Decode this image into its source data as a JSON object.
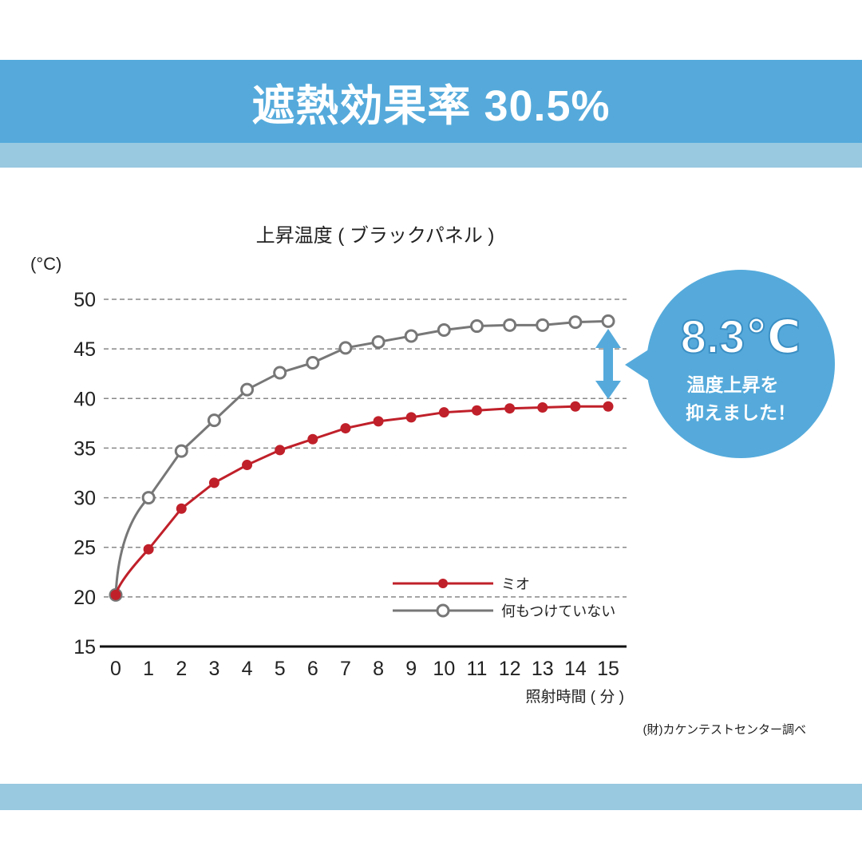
{
  "header": {
    "title": "遮熱効果率 30.5%"
  },
  "chart_data": {
    "type": "line",
    "title": "上昇温度 ( ブラックパネル )",
    "ylabel": "(°C)",
    "xlabel": "照射時間 ( 分 )",
    "ylim": [
      15,
      50
    ],
    "yticks": [
      "15",
      "20",
      "25",
      "30",
      "35",
      "40",
      "45",
      "50"
    ],
    "x": [
      0,
      1,
      2,
      3,
      4,
      5,
      6,
      7,
      8,
      9,
      10,
      11,
      12,
      13,
      14,
      15
    ],
    "xticks": [
      "0",
      "1",
      "2",
      "3",
      "4",
      "5",
      "6",
      "7",
      "8",
      "9",
      "10",
      "11",
      "12",
      "13",
      "14",
      "15"
    ],
    "grid": "horizontal dashed",
    "legend_placement": "bottom-right",
    "series": [
      {
        "name": "ミオ",
        "color": "#c0202a",
        "marker": "filled-circle",
        "values": [
          20.2,
          24.8,
          28.9,
          31.5,
          33.3,
          34.8,
          35.9,
          37.0,
          37.7,
          38.1,
          38.6,
          38.8,
          39.0,
          39.1,
          39.2,
          39.2
        ]
      },
      {
        "name": "何もつけていない",
        "color": "#777777",
        "marker": "open-circle",
        "values": [
          20.2,
          30.0,
          34.7,
          37.8,
          40.9,
          42.6,
          43.6,
          45.1,
          45.7,
          46.3,
          46.9,
          47.3,
          47.4,
          47.4,
          47.7,
          47.8
        ]
      }
    ],
    "annotation": {
      "value": "8.3℃",
      "line1": "温度上昇を",
      "line2": "抑えました！",
      "color": "#55aadb"
    },
    "source": "(財)カケンテストセンター調べ"
  }
}
